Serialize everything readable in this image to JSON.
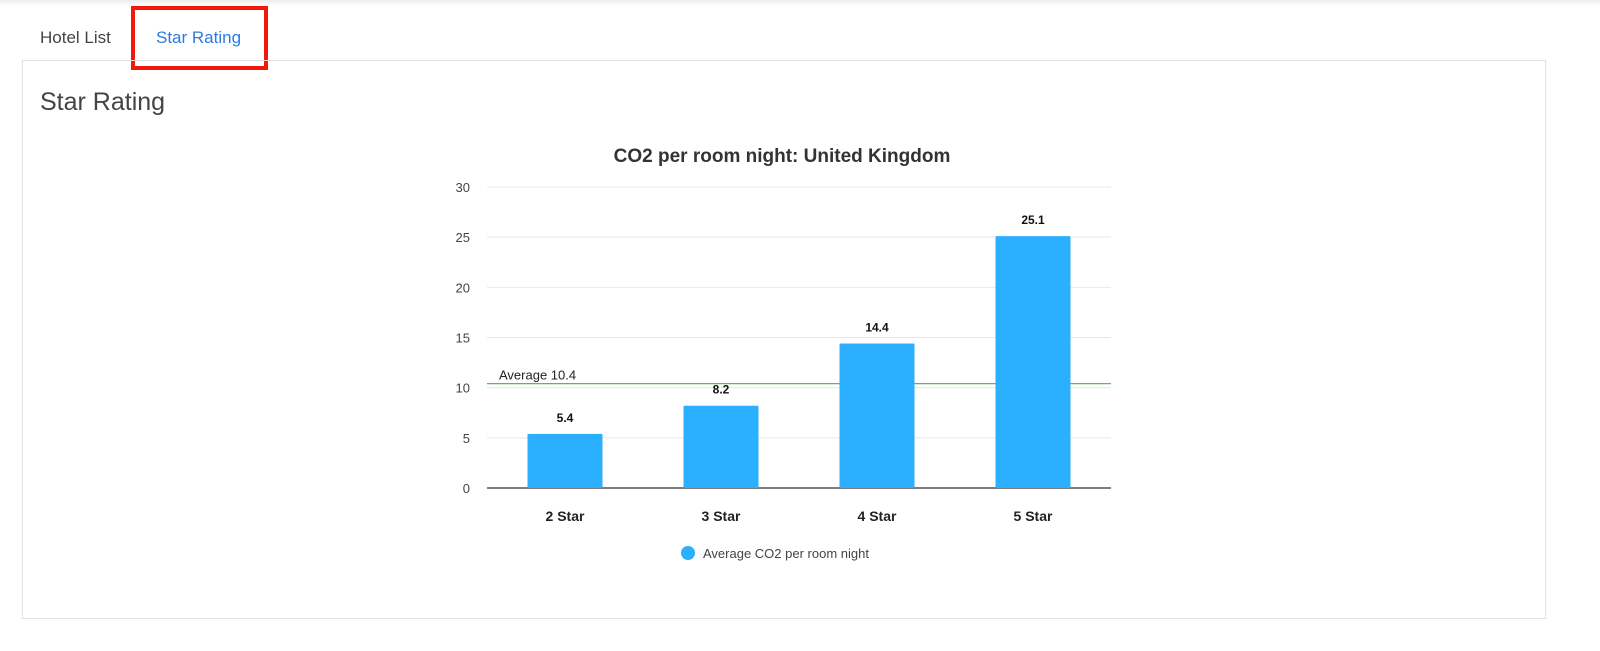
{
  "tabs": [
    {
      "label": "Hotel List",
      "active": false
    },
    {
      "label": "Star Rating",
      "active": true
    }
  ],
  "panel": {
    "title": "Star Rating"
  },
  "chart_data": {
    "type": "bar",
    "title": "CO2 per room night: United Kingdom",
    "categories": [
      "2 Star",
      "3 Star",
      "4 Star",
      "5 Star"
    ],
    "series": [
      {
        "name": "Average CO2 per room night",
        "values": [
          5.4,
          8.2,
          14.4,
          25.1
        ],
        "color": "#2bafff"
      }
    ],
    "data_labels": [
      "5.4",
      "8.2",
      "14.4",
      "25.1"
    ],
    "yticks": [
      0,
      5,
      10,
      15,
      20,
      25,
      30
    ],
    "ylim": [
      0,
      30
    ],
    "grid": true,
    "reference_line": {
      "label": "Average 10.4",
      "value": 10.4,
      "color": "#5cb85c"
    },
    "legend": {
      "label": "Average CO2 per room night",
      "placement": "bottom"
    },
    "xlabel": "",
    "ylabel": ""
  }
}
